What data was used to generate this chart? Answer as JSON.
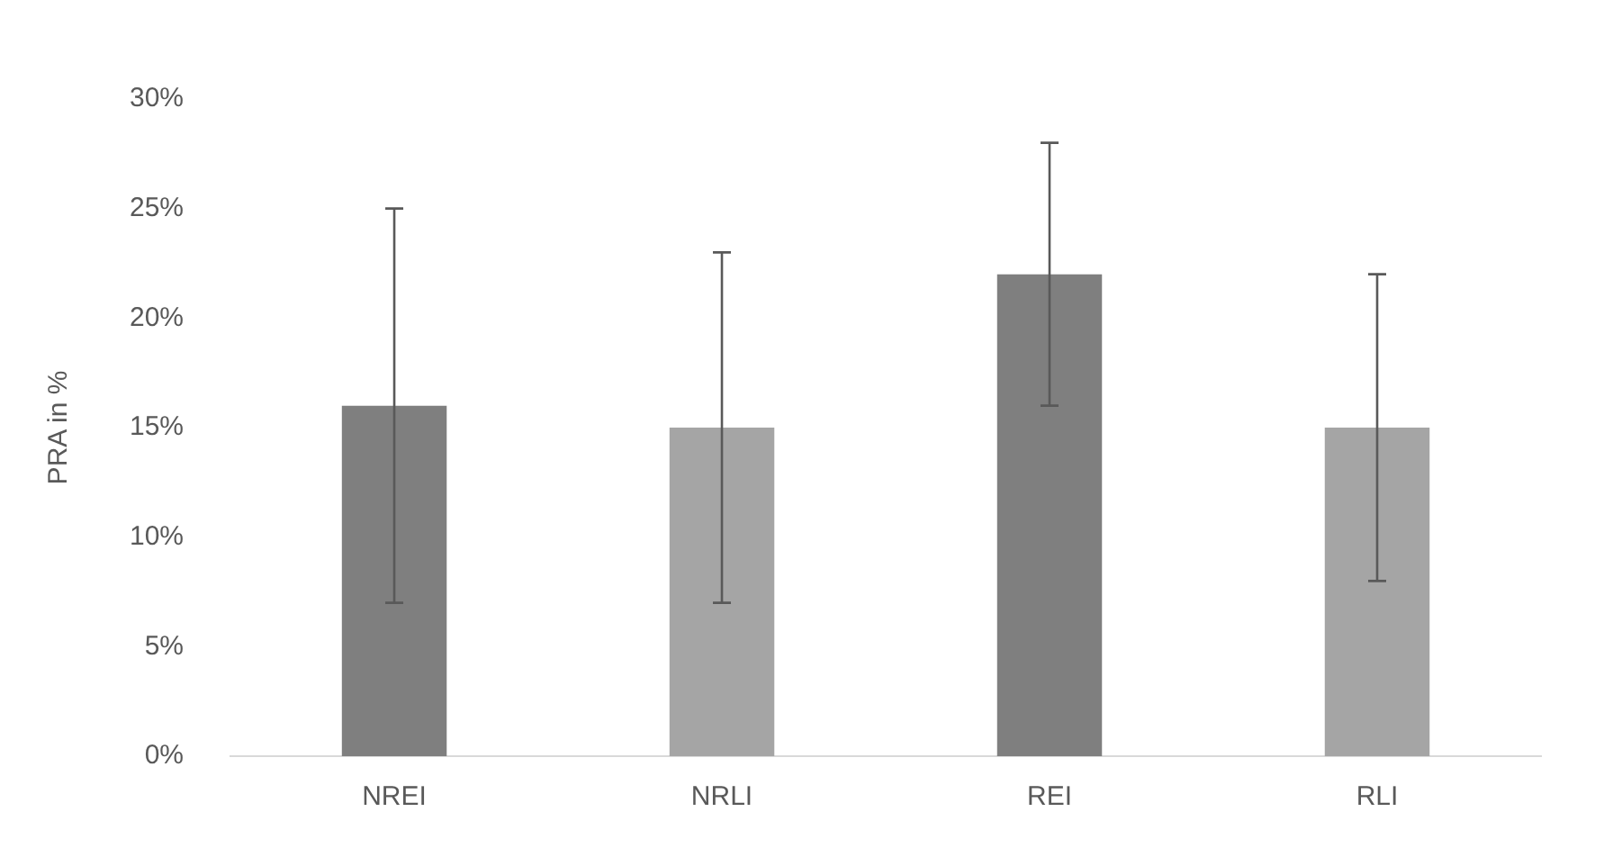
{
  "chart_data": {
    "type": "bar",
    "ylabel": "PRA in %",
    "categories": [
      "NREI",
      "NRLI",
      "REI",
      "RLI"
    ],
    "values": [
      16,
      15,
      22,
      15
    ],
    "colors": [
      "#7f7f7f",
      "#a5a5a5",
      "#7f7f7f",
      "#a5a5a5"
    ],
    "errors": [
      [
        7,
        25
      ],
      [
        7,
        23
      ],
      [
        16,
        28
      ],
      [
        8,
        22
      ]
    ],
    "ylim": [
      0,
      30
    ],
    "yticks": [
      {
        "value": 0,
        "label": "0%"
      },
      {
        "value": 5,
        "label": "5%"
      },
      {
        "value": 10,
        "label": "10%"
      },
      {
        "value": 15,
        "label": "15%"
      },
      {
        "value": 20,
        "label": "20%"
      },
      {
        "value": 25,
        "label": "25%"
      },
      {
        "value": 30,
        "label": "30%"
      }
    ],
    "grid": false,
    "legend": false
  }
}
